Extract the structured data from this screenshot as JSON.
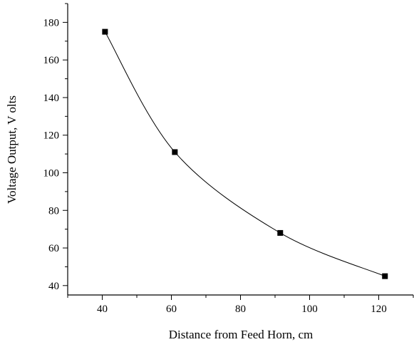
{
  "chart_data": {
    "type": "line",
    "xlabel": "Distance from Feed Horn, cm",
    "ylabel": "Voltage Output,  V olts",
    "xlim": [
      30,
      130
    ],
    "ylim": [
      35,
      190
    ],
    "x_ticks": [
      40,
      60,
      80,
      100,
      120
    ],
    "y_ticks": [
      40,
      60,
      80,
      100,
      120,
      140,
      160,
      180
    ],
    "x_tick_labels": [
      "40",
      "60",
      "80",
      "100",
      "120"
    ],
    "y_tick_labels": [
      "40",
      "60",
      "80",
      "100",
      "120",
      "140",
      "160",
      "180"
    ],
    "grid": false,
    "marker": "square",
    "line_style": "smooth",
    "series": [
      {
        "x": [
          40.8,
          61.0,
          91.5,
          121.8
        ],
        "y": [
          175,
          111,
          68,
          45
        ]
      }
    ],
    "colors": {
      "line": "#000000",
      "marker": "#000000",
      "axis": "#000000"
    }
  }
}
